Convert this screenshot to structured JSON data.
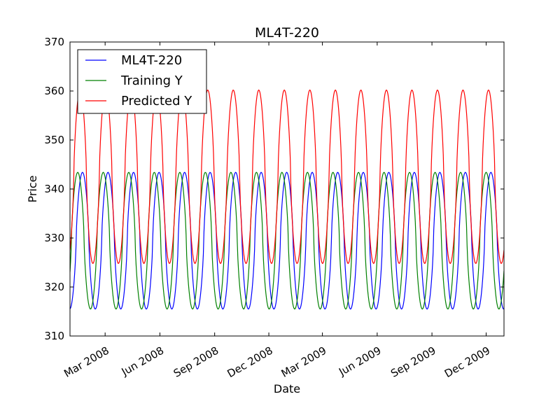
{
  "chart_data": {
    "type": "line",
    "title": "ML4T-220",
    "xlabel": "Date",
    "ylabel": "Price",
    "ylim": [
      310,
      370
    ],
    "yticks": [
      "310",
      "320",
      "330",
      "340",
      "350",
      "360",
      "370"
    ],
    "xlim": [
      "2008-01-02",
      "2009-12-31"
    ],
    "xtick_labels": [
      {
        "date": "2008-03-01",
        "label": "Mar 2008"
      },
      {
        "date": "2008-06-01",
        "label": "Jun 2008"
      },
      {
        "date": "2008-09-01",
        "label": "Sep 2008"
      },
      {
        "date": "2008-12-01",
        "label": "Dec 2008"
      },
      {
        "date": "2009-03-01",
        "label": "Mar 2009"
      },
      {
        "date": "2009-06-01",
        "label": "Jun 2009"
      },
      {
        "date": "2009-09-01",
        "label": "Sep 2009"
      },
      {
        "date": "2009-12-01",
        "label": "Dec 2009"
      }
    ],
    "legend_position": "top-left",
    "grid": false,
    "series": [
      {
        "name": "ML4T-220",
        "color": "#0000ff",
        "start_date": "2008-01-02",
        "end_date": "2009-12-31",
        "min": 315.5,
        "max": 343.4,
        "peak_dates": [
          "2008-01-23",
          "2008-03-06",
          "2008-04-17",
          "2008-05-30",
          "2008-07-13",
          "2008-08-25",
          "2008-10-06",
          "2008-11-18",
          "2009-01-01",
          "2009-02-13",
          "2009-03-27",
          "2009-05-09",
          "2009-06-21",
          "2009-08-02",
          "2009-09-14",
          "2009-10-27",
          "2009-12-09"
        ]
      },
      {
        "name": "Training Y",
        "color": "#008000",
        "start_date": "2008-01-02",
        "end_date": "2009-12-31",
        "min": 315.5,
        "max": 343.4,
        "peak_dates": [
          "2008-01-15",
          "2008-02-27",
          "2008-04-09",
          "2008-05-22",
          "2008-07-04",
          "2008-08-16",
          "2008-09-28",
          "2008-11-10",
          "2008-12-23",
          "2009-02-04",
          "2009-03-19",
          "2009-04-30",
          "2009-06-12",
          "2009-07-25",
          "2009-09-06",
          "2009-10-18",
          "2009-12-01"
        ]
      },
      {
        "name": "Predicted Y",
        "color": "#ff0000",
        "start_date": "2008-01-02",
        "end_date": "2009-12-31",
        "min": 324.8,
        "max": 360.2,
        "peak_dates": [
          "2008-01-19",
          "2008-03-02",
          "2008-04-13",
          "2008-05-26",
          "2008-07-08",
          "2008-08-20",
          "2008-10-02",
          "2008-11-14",
          "2008-12-27",
          "2009-02-08",
          "2009-03-23",
          "2009-05-04",
          "2009-06-16",
          "2009-07-29",
          "2009-09-10",
          "2009-10-22",
          "2009-12-05"
        ]
      }
    ]
  }
}
